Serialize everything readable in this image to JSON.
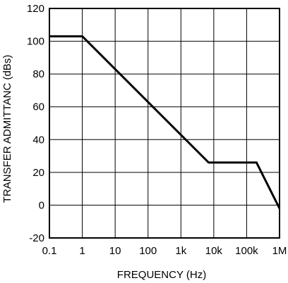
{
  "chart_data": {
    "type": "line",
    "xlabel": "FREQUENCY (Hz)",
    "ylabel": "TRANSFER ADMITTANC (dBs)",
    "x_scale": "log",
    "xlim": [
      0.1,
      1000000
    ],
    "ylim": [
      -20,
      120
    ],
    "x_ticks": [
      {
        "value": 0.1,
        "label": "0.1"
      },
      {
        "value": 1,
        "label": "1"
      },
      {
        "value": 10,
        "label": "10"
      },
      {
        "value": 100,
        "label": "100"
      },
      {
        "value": 1000,
        "label": "1k"
      },
      {
        "value": 10000,
        "label": "10k"
      },
      {
        "value": 100000,
        "label": "100k"
      },
      {
        "value": 1000000,
        "label": "1M"
      }
    ],
    "y_ticks": [
      {
        "value": 120,
        "label": "120"
      },
      {
        "value": 100,
        "label": "100"
      },
      {
        "value": 80,
        "label": "80"
      },
      {
        "value": 60,
        "label": "60"
      },
      {
        "value": 40,
        "label": "40"
      },
      {
        "value": 20,
        "label": "20"
      },
      {
        "value": 0,
        "label": "0"
      },
      {
        "value": -20,
        "label": "-20"
      }
    ],
    "grid": true,
    "series": [
      {
        "color": "#000000",
        "points": [
          {
            "x": 0.1,
            "y": 103
          },
          {
            "x": 1,
            "y": 103
          },
          {
            "x": 7000,
            "y": 26
          },
          {
            "x": 200000,
            "y": 26
          },
          {
            "x": 1000000,
            "y": -2
          }
        ]
      }
    ]
  }
}
